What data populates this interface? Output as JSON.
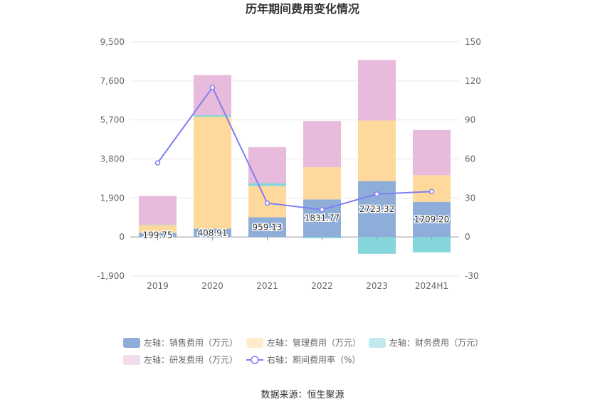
{
  "chart_data": {
    "type": "bar",
    "title": "历年期间费用变化情况",
    "categories": [
      "2019",
      "2020",
      "2021",
      "2022",
      "2023",
      "2024H1"
    ],
    "left_axis": {
      "ticks": [
        "9,500",
        "7,600",
        "5,700",
        "3,800",
        "1,900",
        "0",
        "-1,900"
      ],
      "ylim": [
        -1900,
        9500
      ]
    },
    "right_axis": {
      "ticks": [
        "150",
        "120",
        "90",
        "60",
        "30",
        "0",
        "-30"
      ],
      "ylim": [
        -30,
        150
      ]
    },
    "series": [
      {
        "name": "左轴：销售费用（万元）",
        "kind": "bar",
        "color": "#8eadd9",
        "values": [
          199.75,
          408.91,
          959.13,
          1831.77,
          2723.32,
          1709.2
        ],
        "labels": [
          "199.75",
          "408.91",
          "959.13",
          "1831.77",
          "2723.32",
          "1709.20"
        ]
      },
      {
        "name": "左轴：管理费用（万元）",
        "kind": "bar",
        "color": "#ffd99c",
        "values": [
          380,
          5450,
          1520,
          1570,
          2950,
          1300
        ]
      },
      {
        "name": "左轴：财务费用（万元）",
        "kind": "bar",
        "color": "#85d6db",
        "values": [
          20,
          80,
          150,
          -60,
          -820,
          -750
        ]
      },
      {
        "name": "左轴：研发费用（万元）",
        "kind": "bar",
        "color": "#e8badb",
        "values": [
          1400,
          1950,
          1750,
          2250,
          2950,
          2200
        ]
      },
      {
        "name": "右轴：期间费用率（%）",
        "kind": "line",
        "axis": "right",
        "color": "#8080f0",
        "values": [
          57,
          115,
          26,
          21,
          33,
          35
        ]
      }
    ],
    "legend_position": "bottom",
    "grid": true
  },
  "source": "数据来源：恒生聚源"
}
